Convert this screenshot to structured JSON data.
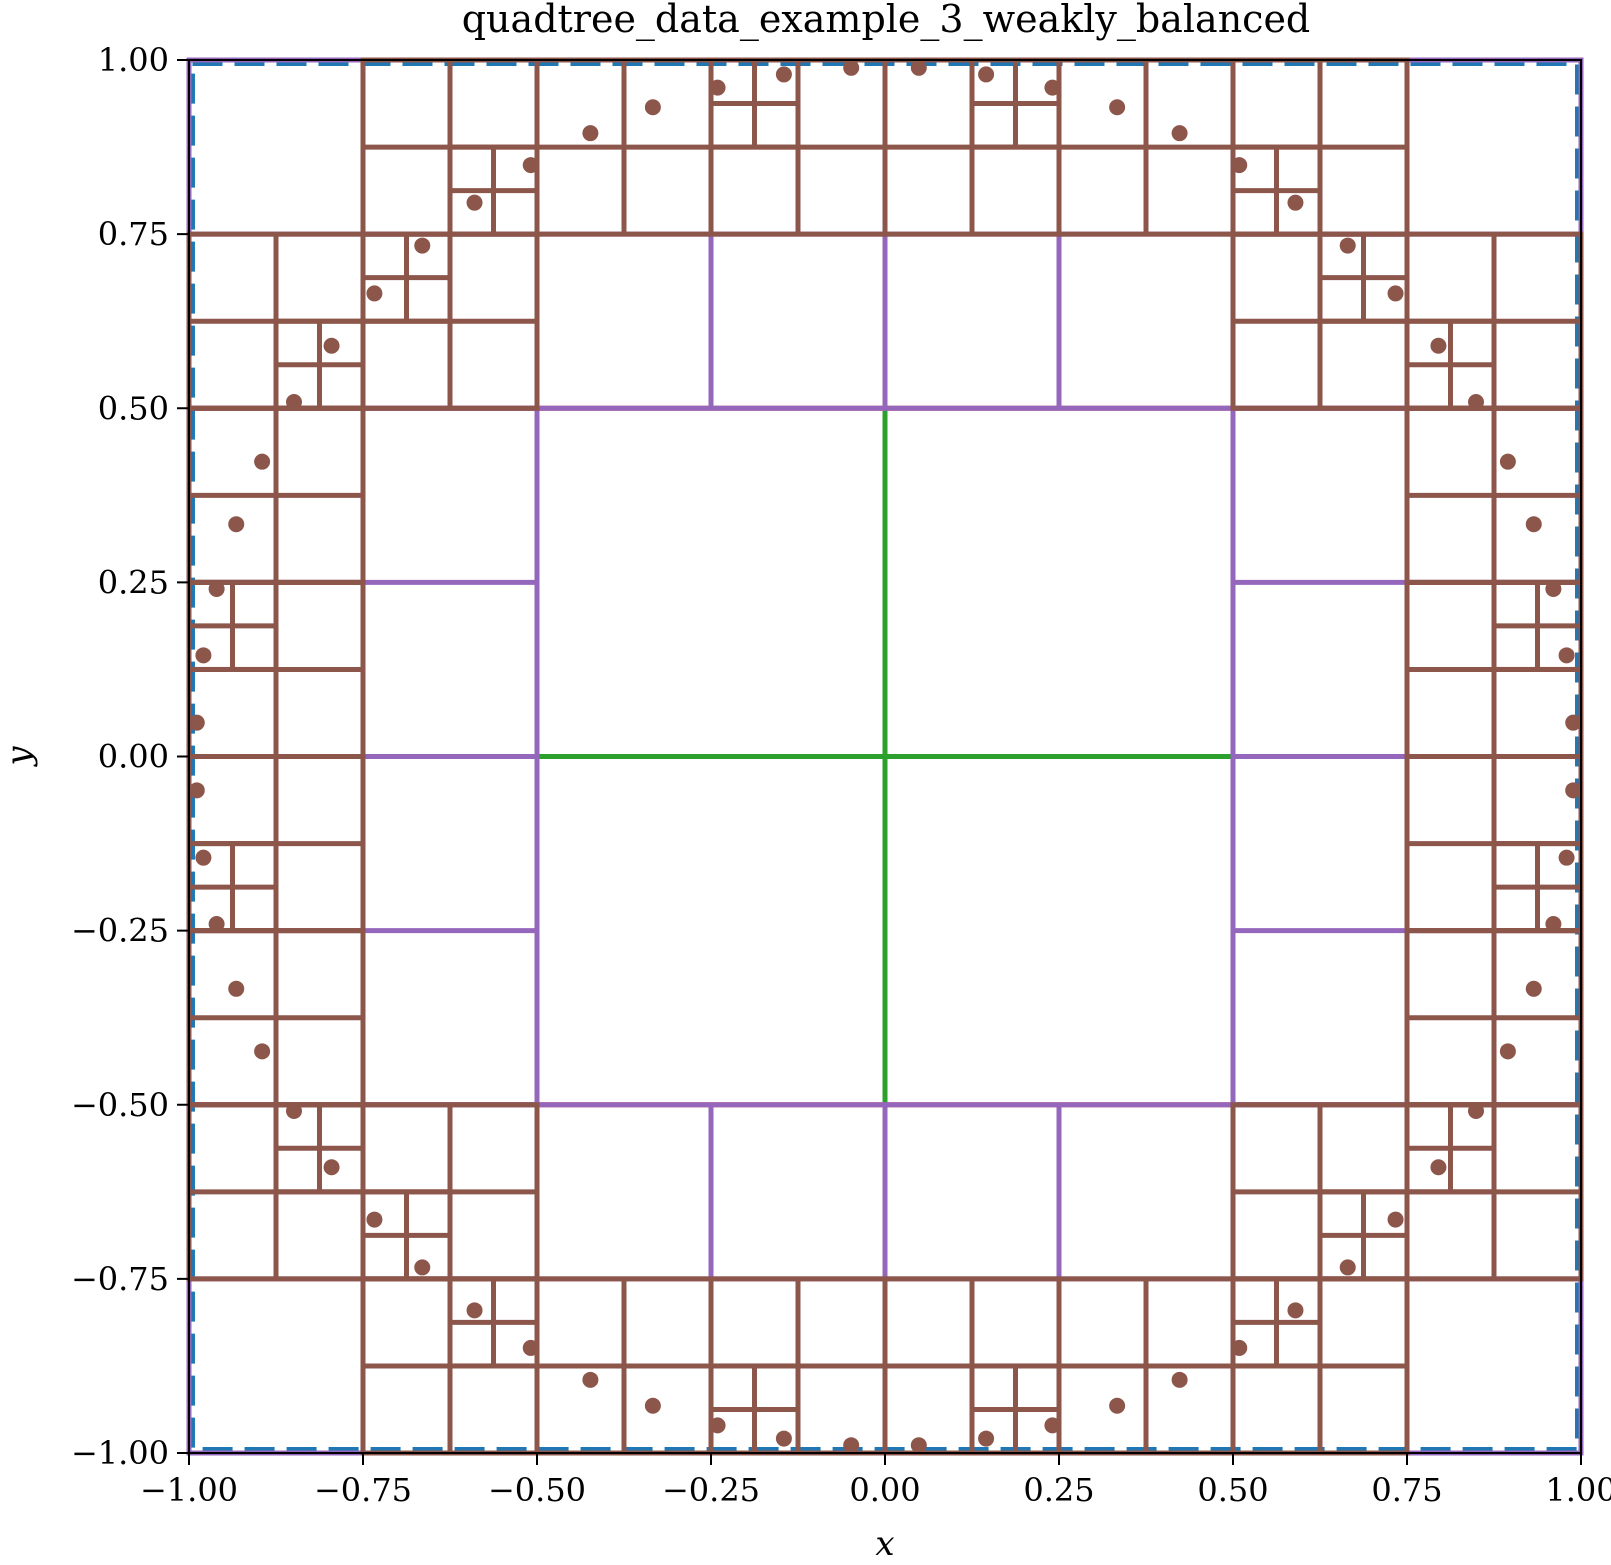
{
  "chart_data": {
    "type": "scatter",
    "title": "quadtree_data_example_3_weakly_balanced",
    "xlabel": "x",
    "ylabel": "y",
    "xlim": [
      -1,
      1
    ],
    "ylim": [
      -1,
      1
    ],
    "grid": false,
    "legend": "none",
    "x_ticks": [
      "−1.00",
      "−0.75",
      "−0.50",
      "−0.25",
      "0.00",
      "0.25",
      "0.50",
      "0.75",
      "1.00"
    ],
    "y_ticks": [
      "−1.00",
      "−0.75",
      "−0.50",
      "−0.25",
      "0.00",
      "0.25",
      "0.50",
      "0.75",
      "1.00"
    ],
    "tick_values": [
      -1,
      -0.75,
      -0.5,
      -0.25,
      0,
      0.25,
      0.5,
      0.75,
      1
    ],
    "level_colors": {
      "0": "#1f77b4",
      "1": "#2ca02c",
      "2": "#d62728",
      "3": "#9467bd",
      "4": "#8c564b",
      "5": "#8c564b"
    },
    "level_line_styles": {
      "0": "dashed"
    },
    "point_color": "#8c564b",
    "points": "64 points uniformly spaced on the circle of radius 0.99"
  }
}
